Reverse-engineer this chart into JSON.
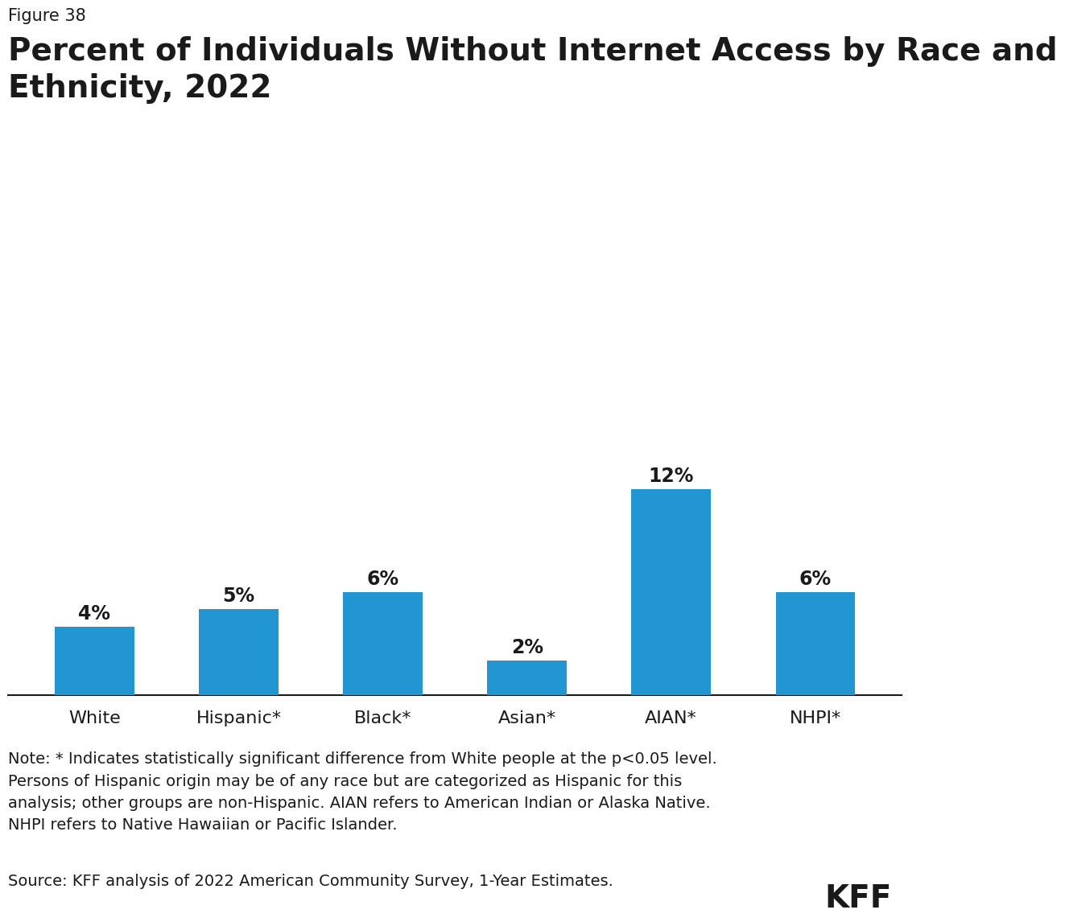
{
  "figure_label": "Figure 38",
  "title": "Percent of Individuals Without Internet Access by Race and\nEthnicity, 2022",
  "categories": [
    "White",
    "Hispanic*",
    "Black*",
    "Asian*",
    "AIAN*",
    "NHPI*"
  ],
  "values": [
    4,
    5,
    6,
    2,
    12,
    6
  ],
  "bar_color": "#2196D3",
  "value_labels": [
    "4%",
    "5%",
    "6%",
    "2%",
    "12%",
    "6%"
  ],
  "ylim": [
    0,
    14
  ],
  "background_color": "#ffffff",
  "bar_label_fontsize": 17,
  "xlabel_fontsize": 16,
  "title_fontsize": 28,
  "figure_label_fontsize": 15,
  "note_text": "Note: * Indicates statistically significant difference from White people at the p<0.05 level.\nPersons of Hispanic origin may be of any race but are categorized as Hispanic for this\nanalysis; other groups are non-Hispanic. AIAN refers to American Indian or Alaska Native.\nNHPI refers to Native Hawaiian or Pacific Islander.",
  "source_text": "Source: KFF analysis of 2022 American Community Survey, 1-Year Estimates.",
  "kff_text": "KFF",
  "note_fontsize": 14,
  "source_fontsize": 14,
  "kff_fontsize": 28
}
